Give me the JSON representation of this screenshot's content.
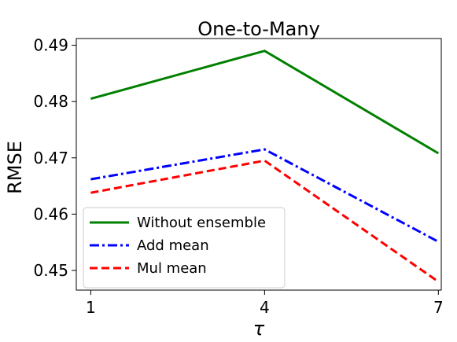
{
  "chart_data": {
    "type": "line",
    "title": "One-to-Many",
    "xlabel": "τ",
    "ylabel": "RMSE",
    "x": [
      1,
      4,
      7
    ],
    "xticks": [
      "1",
      "4",
      "7"
    ],
    "xlim": [
      0.75,
      7.05
    ],
    "yticks": [
      "0.45",
      "0.46",
      "0.47",
      "0.48",
      "0.49"
    ],
    "ytick_values": [
      0.45,
      0.46,
      0.47,
      0.48,
      0.49
    ],
    "ylim": [
      0.4465,
      0.4912
    ],
    "grid": false,
    "legend_position": "lower-left",
    "series": [
      {
        "name": "Without ensemble",
        "values": [
          0.4805,
          0.489,
          0.4708
        ],
        "color": "#008000",
        "style": "solid"
      },
      {
        "name": "Add mean",
        "values": [
          0.4662,
          0.4715,
          0.4551
        ],
        "color": "#0000ff",
        "style": "dashdot"
      },
      {
        "name": "Mul mean",
        "values": [
          0.4638,
          0.4695,
          0.448
        ],
        "color": "#ff0000",
        "style": "dashed"
      }
    ]
  }
}
